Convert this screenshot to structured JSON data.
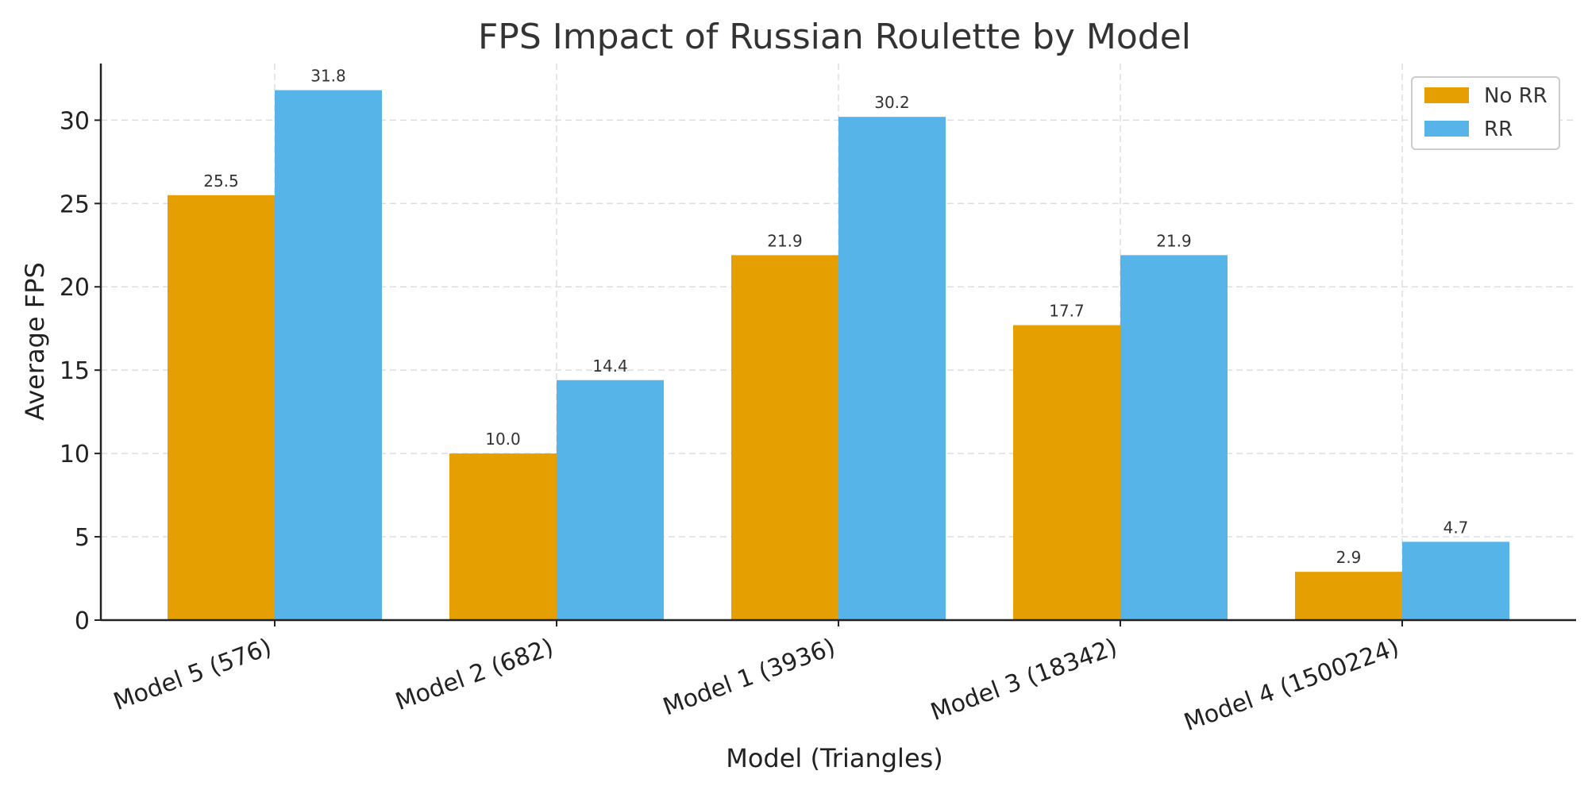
{
  "chart_data": {
    "type": "bar",
    "title": "FPS Impact of Russian Roulette by Model",
    "xlabel": "Model (Triangles)",
    "ylabel": "Average FPS",
    "categories": [
      "Model 5 (576)",
      "Model 2 (682)",
      "Model 1 (3936)",
      "Model 3 (18342)",
      "Model 4 (1500224)"
    ],
    "series": [
      {
        "name": "No RR",
        "color": "#E69F00",
        "values": [
          25.5,
          10.0,
          21.9,
          17.7,
          2.9
        ],
        "labels": [
          "25.5",
          "10.0",
          "21.9",
          "17.7",
          "2.9"
        ]
      },
      {
        "name": "RR",
        "color": "#56B4E9",
        "values": [
          31.8,
          14.4,
          30.2,
          21.9,
          4.7
        ],
        "labels": [
          "31.8",
          "14.4",
          "30.2",
          "21.9",
          "4.7"
        ]
      }
    ],
    "ylim": [
      0,
      33.4
    ],
    "yticks": [
      0,
      5,
      10,
      15,
      20,
      25,
      30
    ],
    "ytick_labels": [
      "0",
      "5",
      "10",
      "15",
      "20",
      "25",
      "30"
    ],
    "grid": true,
    "legend_position": "top-right"
  }
}
